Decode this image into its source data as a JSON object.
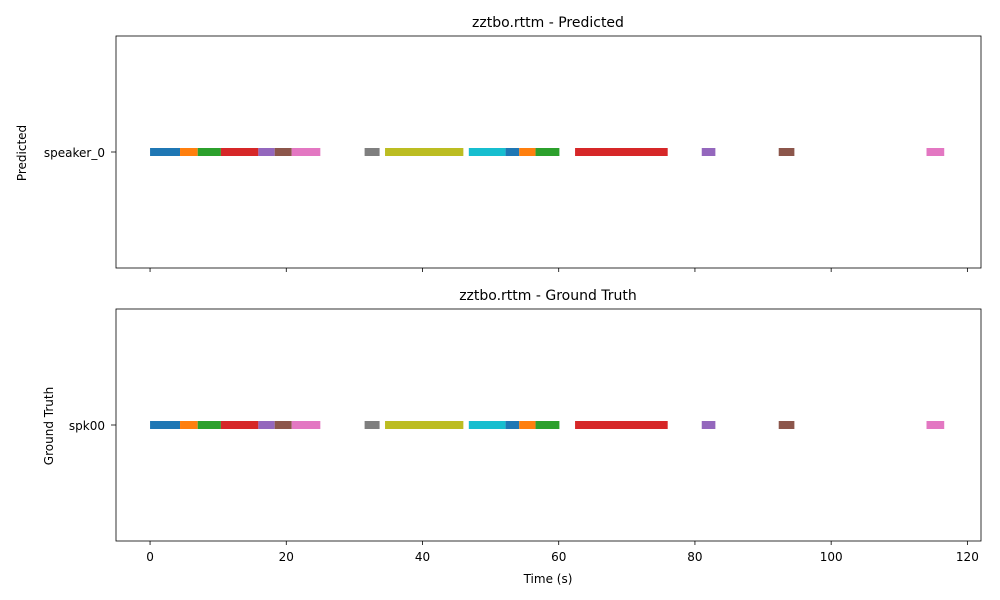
{
  "chart_data": [
    {
      "type": "timeline",
      "title": "zztbo.rttm - Predicted",
      "ylabel": "Predicted",
      "xlabel": "",
      "category": "speaker_0",
      "xlim": [
        -5,
        122
      ],
      "xticks": [
        0,
        20,
        40,
        60,
        80,
        100,
        120
      ],
      "show_xtick_labels": false,
      "grid": false,
      "segments": [
        {
          "start": 0.0,
          "end": 4.4,
          "color": "#1f77b4"
        },
        {
          "start": 4.4,
          "end": 7.0,
          "color": "#ff7f0e"
        },
        {
          "start": 7.0,
          "end": 10.4,
          "color": "#2ca02c"
        },
        {
          "start": 10.4,
          "end": 15.9,
          "color": "#d62728"
        },
        {
          "start": 15.9,
          "end": 18.3,
          "color": "#9467bd"
        },
        {
          "start": 18.3,
          "end": 20.8,
          "color": "#8c564b"
        },
        {
          "start": 20.8,
          "end": 25.0,
          "color": "#e377c2"
        },
        {
          "start": 31.5,
          "end": 33.7,
          "color": "#7f7f7f"
        },
        {
          "start": 34.5,
          "end": 46.0,
          "color": "#bcbd22"
        },
        {
          "start": 46.8,
          "end": 52.2,
          "color": "#17becf"
        },
        {
          "start": 52.2,
          "end": 54.2,
          "color": "#1f77b4"
        },
        {
          "start": 54.2,
          "end": 56.6,
          "color": "#ff7f0e"
        },
        {
          "start": 56.6,
          "end": 60.1,
          "color": "#2ca02c"
        },
        {
          "start": 62.4,
          "end": 76.0,
          "color": "#d62728"
        },
        {
          "start": 81.0,
          "end": 83.0,
          "color": "#9467bd"
        },
        {
          "start": 92.3,
          "end": 94.6,
          "color": "#8c564b"
        },
        {
          "start": 114.0,
          "end": 116.6,
          "color": "#e377c2"
        }
      ]
    },
    {
      "type": "timeline",
      "title": "zztbo.rttm - Ground Truth",
      "ylabel": "Ground Truth",
      "xlabel": "Time (s)",
      "category": "spk00",
      "xlim": [
        -5,
        122
      ],
      "xticks": [
        0,
        20,
        40,
        60,
        80,
        100,
        120
      ],
      "show_xtick_labels": true,
      "grid": false,
      "segments": [
        {
          "start": 0.0,
          "end": 4.4,
          "color": "#1f77b4"
        },
        {
          "start": 4.4,
          "end": 7.0,
          "color": "#ff7f0e"
        },
        {
          "start": 7.0,
          "end": 10.4,
          "color": "#2ca02c"
        },
        {
          "start": 10.4,
          "end": 15.9,
          "color": "#d62728"
        },
        {
          "start": 15.9,
          "end": 18.3,
          "color": "#9467bd"
        },
        {
          "start": 18.3,
          "end": 20.8,
          "color": "#8c564b"
        },
        {
          "start": 20.8,
          "end": 25.0,
          "color": "#e377c2"
        },
        {
          "start": 31.5,
          "end": 33.7,
          "color": "#7f7f7f"
        },
        {
          "start": 34.5,
          "end": 46.0,
          "color": "#bcbd22"
        },
        {
          "start": 46.8,
          "end": 52.2,
          "color": "#17becf"
        },
        {
          "start": 52.2,
          "end": 54.2,
          "color": "#1f77b4"
        },
        {
          "start": 54.2,
          "end": 56.6,
          "color": "#ff7f0e"
        },
        {
          "start": 56.6,
          "end": 60.1,
          "color": "#2ca02c"
        },
        {
          "start": 62.4,
          "end": 76.0,
          "color": "#d62728"
        },
        {
          "start": 81.0,
          "end": 83.0,
          "color": "#9467bd"
        },
        {
          "start": 92.3,
          "end": 94.6,
          "color": "#8c564b"
        },
        {
          "start": 114.0,
          "end": 116.6,
          "color": "#e377c2"
        }
      ]
    }
  ]
}
